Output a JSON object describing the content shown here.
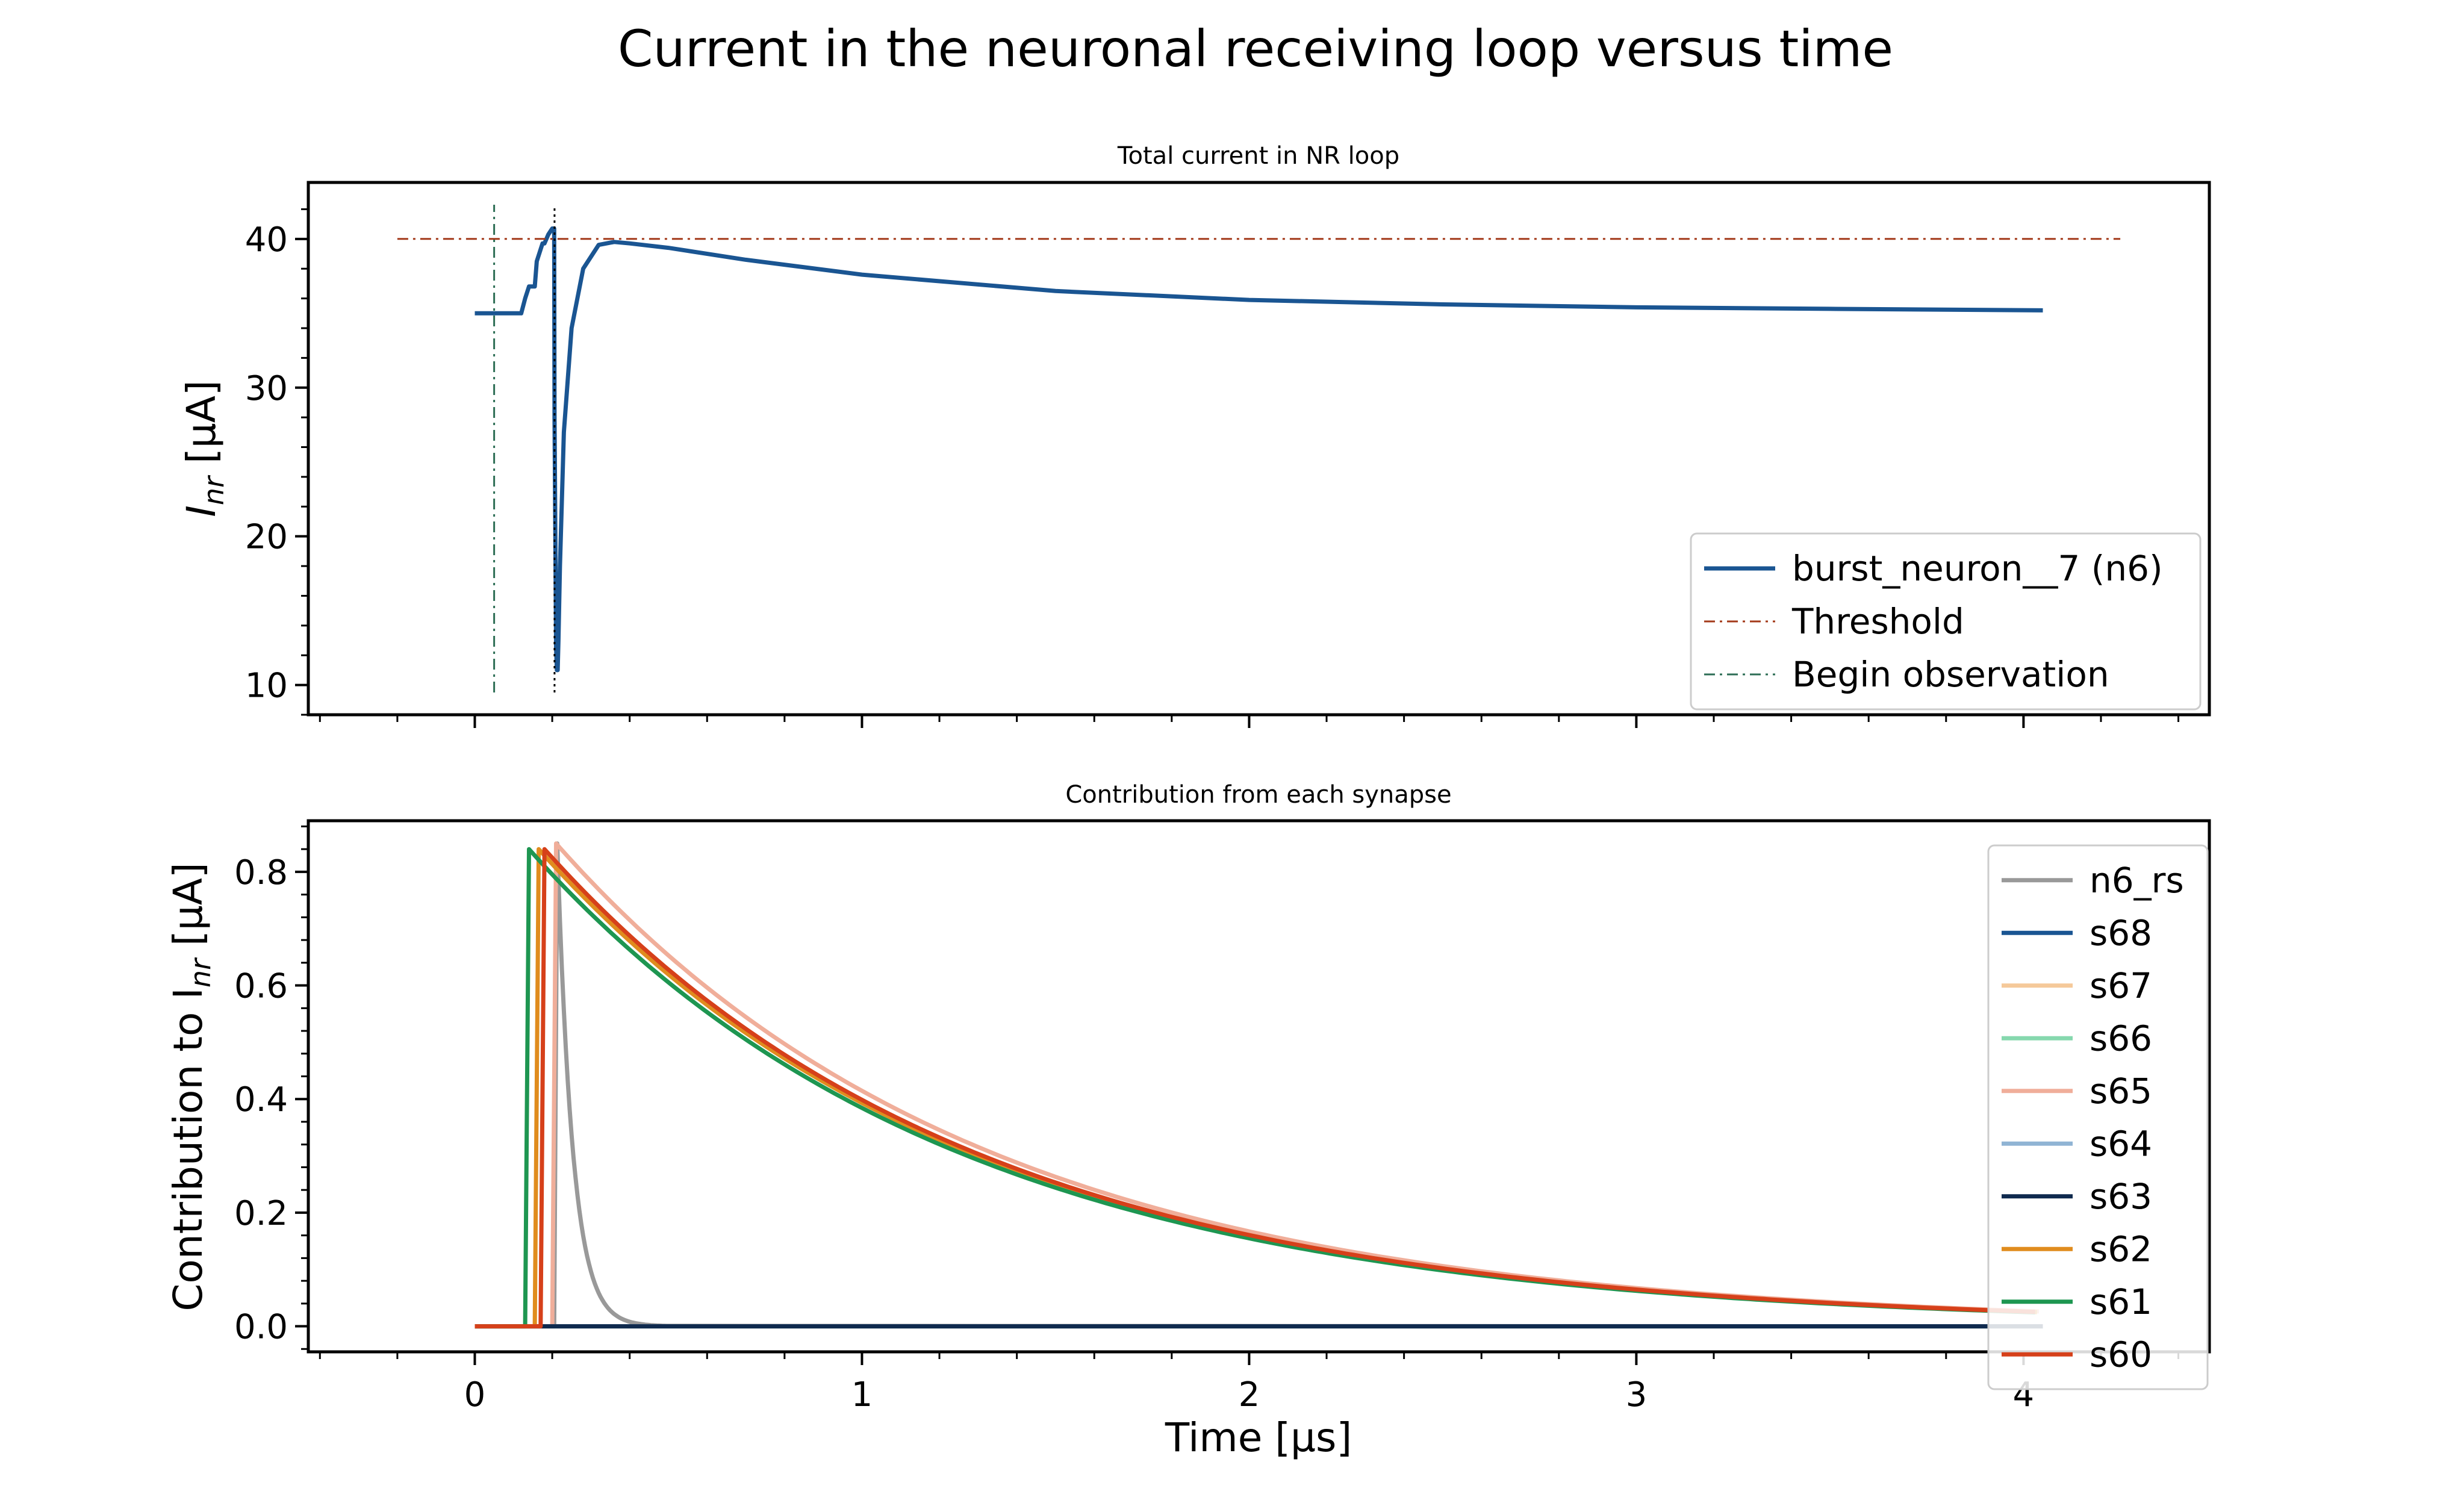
{
  "figure": {
    "title": "Current in the neuronal receiving loop versus time"
  },
  "chart_data": [
    {
      "type": "line",
      "title": "Total current in NR loop",
      "ylabel_main": "I",
      "ylabel_sub": "nr",
      "ylabel_unit": " [μA]",
      "xlim": [
        -0.43,
        4.48
      ],
      "ylim": [
        8.0,
        43.8
      ],
      "yticks": [
        10,
        20,
        30,
        40
      ],
      "ytick_labels": [
        "10",
        "20",
        "30",
        "40"
      ],
      "xticks": [
        0,
        1,
        2,
        3,
        4
      ],
      "legend_position": "lower-right",
      "series": [
        {
          "name": "burst_neuron__7 (n6)",
          "color": "#1a5592",
          "style": "solid",
          "x": [
            0,
            0.05,
            0.12,
            0.13,
            0.14,
            0.155,
            0.16,
            0.17,
            0.175,
            0.18,
            0.19,
            0.2,
            0.205,
            0.206,
            0.21,
            0.212,
            0.214,
            0.216,
            0.22,
            0.23,
            0.25,
            0.28,
            0.32,
            0.36,
            0.4,
            0.5,
            0.7,
            1.0,
            1.5,
            2.0,
            2.5,
            3.0,
            3.5,
            4.05
          ],
          "y": [
            35,
            35,
            35,
            36,
            36.8,
            36.8,
            38.5,
            39.3,
            39.7,
            39.7,
            40.3,
            40.7,
            40.7,
            28,
            12.5,
            11,
            11,
            13,
            18,
            27,
            34,
            38,
            39.6,
            39.8,
            39.7,
            39.4,
            38.6,
            37.6,
            36.5,
            35.9,
            35.6,
            35.4,
            35.3,
            35.2
          ]
        },
        {
          "name": "Threshold",
          "color": "#a33a1a",
          "style": "dashdot",
          "x": [
            -0.2,
            4.25
          ],
          "y": [
            40,
            40
          ]
        },
        {
          "name": "Begin observation",
          "color": "#2d6e55",
          "style": "dashdot",
          "x": [
            0.05,
            0.05
          ],
          "y": [
            9.5,
            42.3
          ]
        },
        {
          "color": "#000000",
          "style": "dotted",
          "x": [
            0.206,
            0.206
          ],
          "y": [
            9.5,
            42.3
          ]
        }
      ]
    },
    {
      "type": "line",
      "title": "Contribution from each synapse",
      "ylabel_main": "Contribution to I",
      "ylabel_sub": "nr",
      "ylabel_unit": " [μA]",
      "xlabel": "Time [μs]",
      "xlim": [
        -0.43,
        4.48
      ],
      "ylim": [
        -0.045,
        0.89
      ],
      "yticks": [
        0.0,
        0.2,
        0.4,
        0.6,
        0.8
      ],
      "ytick_labels": [
        "0.0",
        "0.2",
        "0.4",
        "0.6",
        "0.8"
      ],
      "xticks": [
        0,
        1,
        2,
        3,
        4
      ],
      "xtick_labels": [
        "0",
        "1",
        "2",
        "3",
        "4"
      ],
      "legend_position": "right",
      "series": [
        {
          "name": "n6_rs",
          "color": "#999999",
          "shape": "fast",
          "onset": 0.205,
          "peak": 0.85
        },
        {
          "name": "s68",
          "color": "#1a5592",
          "shape": "flat"
        },
        {
          "name": "s67",
          "color": "#f5c99a",
          "shape": "flat"
        },
        {
          "name": "s66",
          "color": "#86d8ae",
          "shape": "flat"
        },
        {
          "name": "s65",
          "color": "#f0ae9a",
          "shape": "slow",
          "onset": 0.2,
          "peak": 0.85
        },
        {
          "name": "s64",
          "color": "#90b4d4",
          "shape": "flat"
        },
        {
          "name": "s63",
          "color": "#0f2a4e",
          "shape": "flat"
        },
        {
          "name": "s62",
          "color": "#e08c1e",
          "shape": "slow",
          "onset": 0.155,
          "peak": 0.84
        },
        {
          "name": "s61",
          "color": "#1e9651",
          "shape": "slow",
          "onset": 0.13,
          "peak": 0.84
        },
        {
          "name": "s60",
          "color": "#d6401a",
          "shape": "slow",
          "onset": 0.17,
          "peak": 0.84
        }
      ]
    }
  ]
}
